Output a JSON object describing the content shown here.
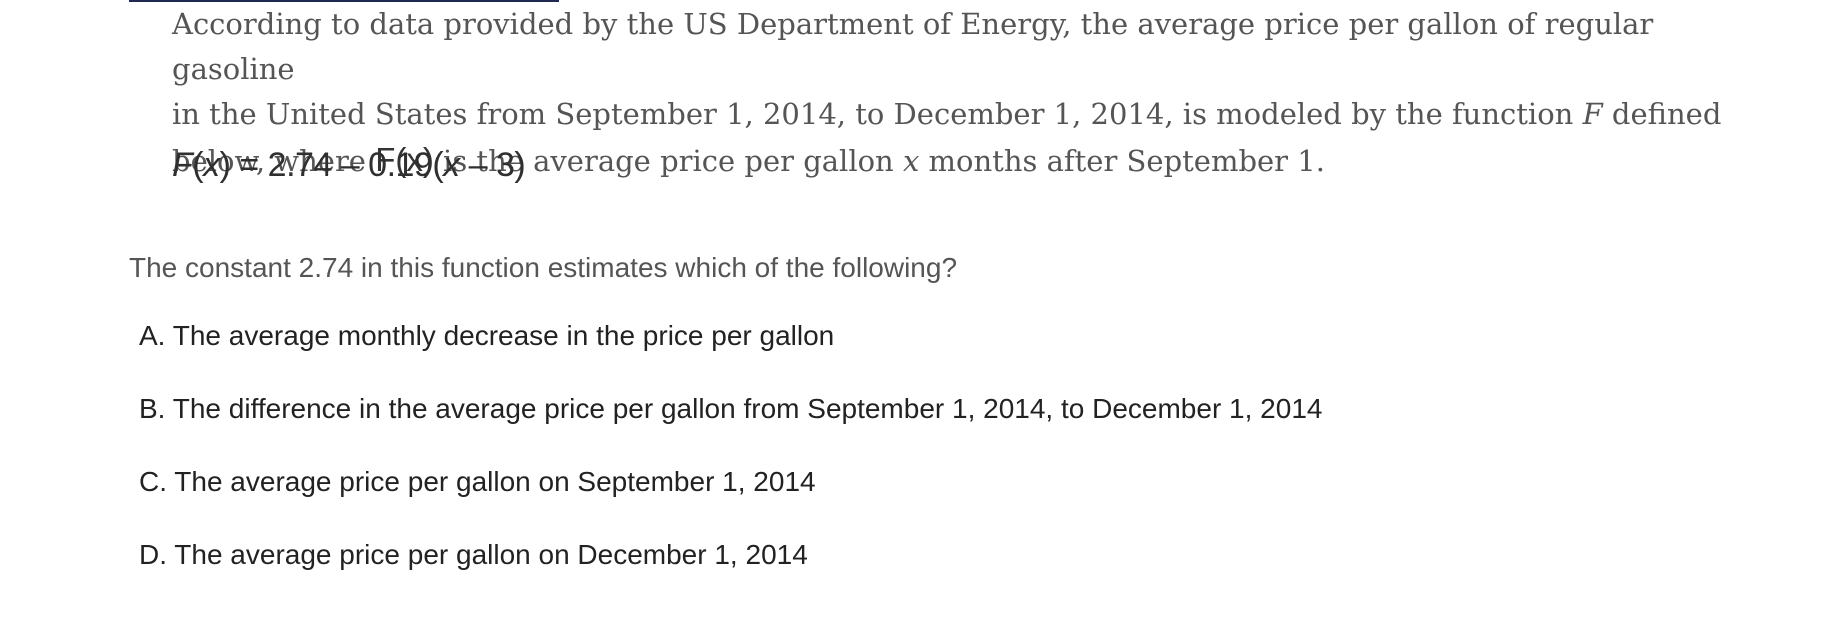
{
  "passage": {
    "line1": "According to data provided by the US Department of Energy, the average price per gallon of regular gasoline",
    "line2_a": "in the United States from September 1, 2014, to December 1, 2014, is modeled by the function ",
    "line2_var": "F",
    "line2_b": " defined",
    "line3_a": "below, where ",
    "line3_math": "F(x)",
    "line3_b": " is the average price per gallon ",
    "line3_var": "x",
    "line3_c": " months after September 1."
  },
  "equation": {
    "lhs_f": "F",
    "lhs_paren_open": "(",
    "lhs_x": "x",
    "lhs_rest": ") = 2.74 – 0.19(",
    "rhs_x": "x",
    "rhs_rest": " – 3)"
  },
  "question": {
    "text": "The constant 2.74 in this function estimates which of the following?"
  },
  "choices": [
    {
      "letter": "A.",
      "text": "The average monthly decrease in the price per gallon"
    },
    {
      "letter": "B.",
      "text": "The difference in the average price per gallon from September 1, 2014, to December 1, 2014"
    },
    {
      "letter": "C.",
      "text": "The average price per gallon on September 1, 2014"
    },
    {
      "letter": "D.",
      "text": "The average price per gallon on December 1, 2014"
    }
  ]
}
